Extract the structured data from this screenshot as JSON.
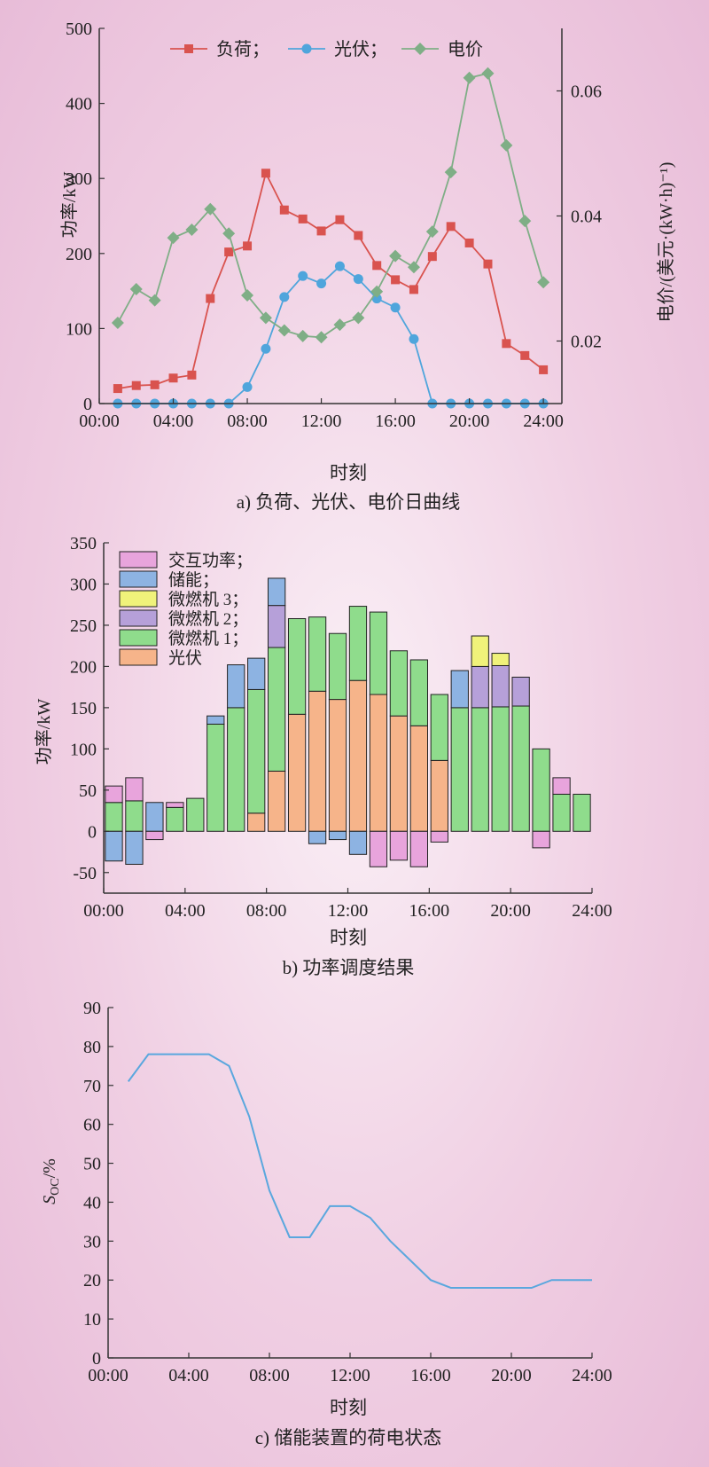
{
  "chart_data": [
    {
      "type": "line",
      "caption": "a) 负荷、光伏、电价日曲线",
      "xlabel": "时刻",
      "ylabel": "功率/kW",
      "y2label": "电价/(美元·(kW·h)⁻¹)",
      "xticks": [
        "00:00",
        "04:00",
        "08:00",
        "12:00",
        "16:00",
        "20:00",
        "24:00"
      ],
      "xlim": [
        0,
        25
      ],
      "ylim": [
        0,
        500
      ],
      "yticks": [
        0,
        100,
        200,
        300,
        400,
        500
      ],
      "y2lim": [
        0.01,
        0.07
      ],
      "y2ticks": [
        0.02,
        0.04,
        0.06
      ],
      "y2ticklabels": [
        "0.02",
        "0.04",
        "0.06"
      ],
      "legend_position": "top",
      "x": [
        1,
        2,
        3,
        4,
        5,
        6,
        7,
        8,
        9,
        10,
        11,
        12,
        13,
        14,
        15,
        16,
        17,
        18,
        19,
        20,
        21,
        22,
        23,
        24
      ],
      "series": [
        {
          "name": "负荷；",
          "color": "#d9534f",
          "marker": "square",
          "axis": "left",
          "values": [
            20,
            24,
            25,
            34,
            38,
            140,
            202,
            210,
            307,
            258,
            246,
            230,
            245,
            224,
            184,
            165,
            152,
            196,
            236,
            214,
            186,
            80,
            64,
            45
          ]
        },
        {
          "name": "光伏；",
          "color": "#4fa5dc",
          "marker": "circle",
          "axis": "left",
          "values": [
            0,
            0,
            0,
            0,
            0,
            0,
            0,
            22,
            73,
            142,
            170,
            160,
            183,
            166,
            140,
            128,
            86,
            0,
            0,
            0,
            0,
            0,
            0,
            0
          ]
        },
        {
          "name": "电价",
          "color": "#7fae86",
          "marker": "diamond",
          "axis": "right",
          "values": [
            0.0229,
            0.0283,
            0.0265,
            0.0365,
            0.0378,
            0.0411,
            0.0372,
            0.0273,
            0.0237,
            0.0217,
            0.0208,
            0.0206,
            0.0226,
            0.0237,
            0.0279,
            0.0336,
            0.0318,
            0.0375,
            0.047,
            0.0621,
            0.0628,
            0.0513,
            0.0392,
            0.0294
          ]
        }
      ]
    },
    {
      "type": "bar",
      "stacked": true,
      "caption": "b) 功率调度结果",
      "xlabel": "时刻",
      "ylabel": "功率/kW",
      "xticks": [
        "00:00",
        "04:00",
        "08:00",
        "12:00",
        "16:00",
        "20:00",
        "24:00"
      ],
      "xlim": [
        0,
        24
      ],
      "ylim": [
        -75,
        350
      ],
      "yticks": [
        -50,
        0,
        50,
        100,
        150,
        200,
        250,
        300,
        350
      ],
      "legend_position": "top-left",
      "hours": [
        1,
        2,
        3,
        4,
        5,
        6,
        7,
        8,
        9,
        10,
        11,
        12,
        13,
        14,
        15,
        16,
        17,
        18,
        19,
        20,
        21,
        22,
        23,
        24
      ],
      "series": [
        {
          "name": "交互功率；",
          "color": "#e8a4dc",
          "values": [
            20,
            28,
            -10,
            6,
            0,
            0,
            0,
            0,
            0,
            0,
            0,
            0,
            0,
            -43,
            -35,
            -43,
            -13,
            0,
            0,
            0,
            0,
            -20,
            20,
            0
          ]
        },
        {
          "name": "储能；",
          "color": "#8db3e2",
          "values": [
            -36,
            -40,
            35,
            0,
            0,
            10,
            52,
            38,
            33,
            0,
            -15,
            -10,
            -28,
            0,
            0,
            0,
            0,
            45,
            0,
            0,
            0,
            0,
            0,
            0
          ]
        },
        {
          "name": "微燃机 3；",
          "color": "#f0f27a",
          "values": [
            0,
            0,
            0,
            0,
            0,
            0,
            0,
            0,
            0,
            0,
            0,
            0,
            0,
            0,
            0,
            0,
            0,
            0,
            37,
            15,
            0,
            0,
            0,
            0
          ]
        },
        {
          "name": "微燃机 2；",
          "color": "#b6a0d9",
          "values": [
            0,
            0,
            0,
            0,
            0,
            0,
            0,
            0,
            51,
            0,
            0,
            0,
            0,
            0,
            0,
            0,
            0,
            0,
            50,
            50,
            35,
            0,
            0,
            0
          ]
        },
        {
          "name": "微燃机 1；",
          "color": "#8fdc8c",
          "values": [
            35,
            37,
            0,
            29,
            40,
            130,
            150,
            150,
            150,
            116,
            90,
            80,
            90,
            100,
            79,
            80,
            80,
            150,
            150,
            151,
            152,
            100,
            45,
            45
          ]
        },
        {
          "name": "光伏",
          "color": "#f6b48a",
          "values": [
            0,
            0,
            0,
            0,
            0,
            0,
            0,
            22,
            73,
            142,
            170,
            160,
            183,
            166,
            140,
            128,
            86,
            0,
            0,
            0,
            0,
            0,
            0,
            0
          ]
        }
      ]
    },
    {
      "type": "line",
      "caption": "c) 储能装置的荷电状态",
      "xlabel": "时刻",
      "ylabel_main": "S",
      "ylabel_sub": "OC",
      "ylabel_tail": "/%",
      "xticks": [
        "00:00",
        "04:00",
        "08:00",
        "12:00",
        "16:00",
        "20:00",
        "24:00"
      ],
      "xlim": [
        0,
        24
      ],
      "ylim": [
        0,
        90
      ],
      "yticks": [
        0,
        10,
        20,
        30,
        40,
        50,
        60,
        70,
        80,
        90
      ],
      "x": [
        1,
        2,
        3,
        4,
        5,
        6,
        7,
        8,
        9,
        10,
        11,
        12,
        13,
        14,
        15,
        16,
        17,
        18,
        19,
        20,
        21,
        22,
        23,
        24
      ],
      "series": [
        {
          "color": "#5aa7de",
          "values": [
            71,
            78,
            78,
            78,
            78,
            75,
            62,
            43,
            31,
            31,
            39,
            39,
            36,
            30,
            25,
            20,
            18,
            18,
            18,
            18,
            18,
            20,
            20,
            20
          ]
        }
      ]
    }
  ]
}
